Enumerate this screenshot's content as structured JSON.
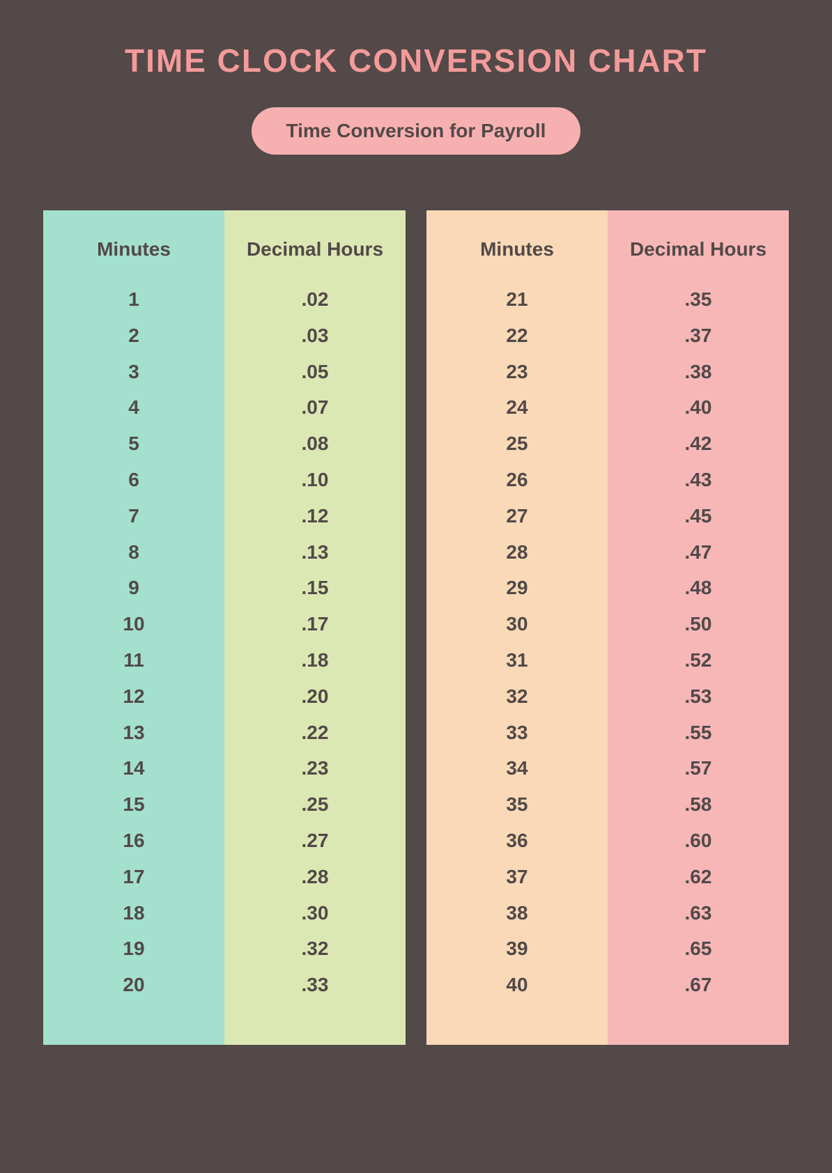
{
  "title": "TIME CLOCK CONVERSION CHART",
  "subtitle": "Time Conversion for Payroll",
  "colors": {
    "page_background": "#524948",
    "title_color": "#f49a9a",
    "subtitle_pill_bg": "#f7b0b0",
    "subtitle_text": "#524948",
    "cell_text": "#524948",
    "col1_bg": "#a3e0cd",
    "col2_bg": "#dce8b3",
    "col3_bg": "#f9d9b7",
    "col4_bg": "#f7b7b7"
  },
  "typography": {
    "title_fontsize": 46,
    "subtitle_fontsize": 28,
    "header_fontsize": 28,
    "value_fontsize": 28,
    "font_weight": 800
  },
  "table": {
    "type": "table",
    "headers": [
      "Minutes",
      "Decimal Hours",
      "Minutes",
      "Decimal Hours"
    ],
    "columns": [
      [
        "1",
        "2",
        "3",
        "4",
        "5",
        "6",
        "7",
        "8",
        "9",
        "10",
        "11",
        "12",
        "13",
        "14",
        "15",
        "16",
        "17",
        "18",
        "19",
        "20"
      ],
      [
        ".02",
        ".03",
        ".05",
        ".07",
        ".08",
        ".10",
        ".12",
        ".13",
        ".15",
        ".17",
        ".18",
        ".20",
        ".22",
        ".23",
        ".25",
        ".27",
        ".28",
        ".30",
        ".32",
        ".33"
      ],
      [
        "21",
        "22",
        "23",
        "24",
        "25",
        "26",
        "27",
        "28",
        "29",
        "30",
        "31",
        "32",
        "33",
        "34",
        "35",
        "36",
        "37",
        "38",
        "39",
        "40"
      ],
      [
        ".35",
        ".37",
        ".38",
        ".40",
        ".42",
        ".43",
        ".45",
        ".47",
        ".48",
        ".50",
        ".52",
        ".53",
        ".55",
        ".57",
        ".58",
        ".60",
        ".62",
        ".63",
        ".65",
        ".67"
      ]
    ],
    "column_colors": [
      "#a3e0cd",
      "#dce8b3",
      "#f9d9b7",
      "#f7b7b7"
    ],
    "gap_after_column_index": 1
  }
}
